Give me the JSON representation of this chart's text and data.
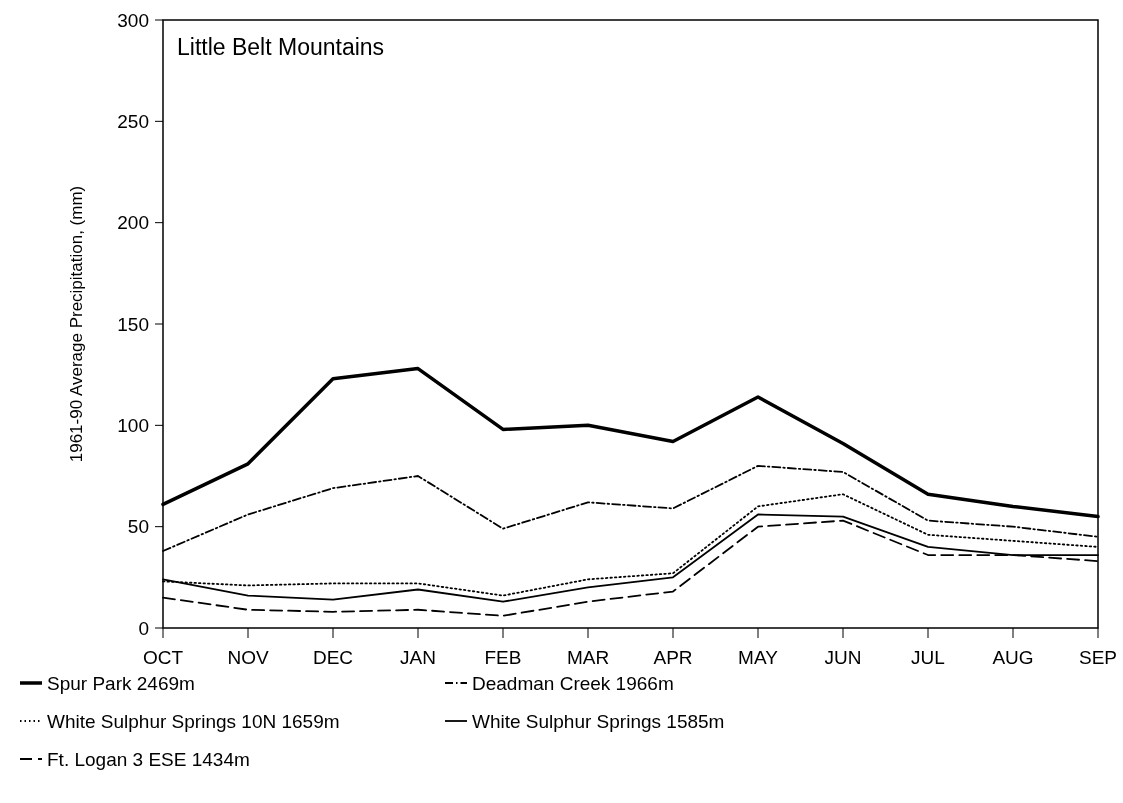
{
  "chart_data": {
    "type": "line",
    "title": "Little Belt Mountains",
    "ylabel": "1961-90 Average Precipitation, (mm)",
    "categories": [
      "OCT",
      "NOV",
      "DEC",
      "JAN",
      "FEB",
      "MAR",
      "APR",
      "MAY",
      "JUN",
      "JUL",
      "AUG",
      "SEP"
    ],
    "series": [
      {
        "name": "Spur Park 2469m",
        "color": "#000000",
        "line_style": "solid",
        "values": [
          61,
          81,
          123,
          128,
          98,
          100,
          92,
          114,
          91,
          66,
          60,
          55
        ]
      },
      {
        "name": "Deadman Creek 1966m",
        "color": "#000000",
        "line_style": "dashdot",
        "values": [
          38,
          56,
          69,
          75,
          49,
          62,
          59,
          80,
          77,
          53,
          50,
          45
        ]
      },
      {
        "name": "White Sulphur Springs 10N 1659m",
        "color": "#000000",
        "line_style": "dotted",
        "values": [
          23,
          21,
          22,
          22,
          16,
          24,
          27,
          60,
          66,
          46,
          43,
          40
        ]
      },
      {
        "name": "White Sulphur Springs 1585m",
        "color": "#000000",
        "line_style": "solid",
        "values": [
          24,
          16,
          14,
          19,
          13,
          20,
          25,
          56,
          55,
          40,
          36,
          36
        ]
      },
      {
        "name": "Ft. Logan 3 ESE 1434m",
        "color": "#000000",
        "line_style": "dashed",
        "values": [
          15,
          9,
          8,
          9,
          6,
          13,
          18,
          50,
          53,
          36,
          36,
          33
        ]
      }
    ],
    "ylim": [
      0,
      300
    ],
    "yticks": [
      0,
      50,
      100,
      150,
      200,
      250,
      300
    ],
    "grid": false,
    "legend": "bottom",
    "marker": "none"
  }
}
